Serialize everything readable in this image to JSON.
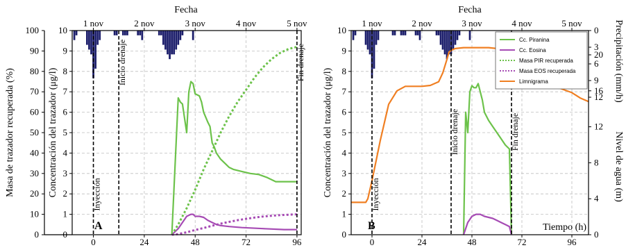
{
  "chart_data": [
    {
      "panel": "A",
      "type": "line",
      "top_axis_title": "Fecha",
      "top_ticks": [
        "1 nov",
        "2 nov",
        "3 nov",
        "4 nov",
        "5 nov"
      ],
      "top_tick_hours": [
        0,
        24,
        48,
        72,
        96
      ],
      "xlabel": "",
      "xlim": [
        -10,
        98
      ],
      "x_ticks": [
        0,
        24,
        48,
        72,
        96
      ],
      "y_left": {
        "label": "Masa de trazador recuperada (%)",
        "lim": [
          0,
          100
        ],
        "ticks": [
          0,
          10,
          20,
          30,
          40,
          50,
          60,
          70,
          80,
          90,
          100
        ]
      },
      "y_right": {
        "label": "Concentración del trazador (μg/l)",
        "lim": [
          0,
          10
        ],
        "ticks": [
          0,
          1,
          2,
          3,
          4,
          5,
          6,
          7,
          8,
          9,
          10
        ]
      },
      "grid": true,
      "annotations": [
        {
          "text": "Inyección",
          "x": 0
        },
        {
          "text": "Inicio drenaje",
          "x": 12
        },
        {
          "text": "Fin drenaje",
          "x": 96
        }
      ],
      "precip_bars": {
        "x": [
          -9,
          -8,
          -3,
          -2,
          -1,
          0,
          1,
          2,
          3,
          10,
          11,
          14,
          15,
          16,
          21,
          22,
          23,
          31,
          32,
          33,
          34,
          35,
          36,
          37,
          38,
          39,
          40,
          41,
          42,
          47
        ],
        "depth_mm_h": [
          2,
          1,
          3,
          4,
          5,
          10,
          8,
          3,
          2,
          1,
          1,
          1,
          1,
          1,
          1,
          1,
          2,
          1,
          1,
          3,
          4,
          5,
          6,
          5,
          5,
          4,
          3,
          2,
          1,
          2
        ]
      },
      "series": [
        {
          "name": "Cc. Piranina",
          "color": "#6cc24a",
          "style": "solid",
          "axis": "conc",
          "x": [
            37,
            40,
            41,
            42,
            44,
            45,
            46,
            47,
            48,
            50,
            51,
            52,
            54,
            55,
            56,
            57,
            58,
            60,
            62,
            64,
            66,
            70,
            74,
            78,
            82,
            86,
            90,
            96
          ],
          "y": [
            0,
            6.7,
            6.5,
            6.4,
            5.0,
            7.0,
            7.5,
            7.4,
            6.9,
            6.8,
            6.5,
            6.0,
            5.5,
            5.3,
            4.5,
            4.3,
            4.0,
            3.7,
            3.5,
            3.3,
            3.2,
            3.1,
            3.0,
            2.95,
            2.8,
            2.6,
            2.6,
            2.6
          ]
        },
        {
          "name": "Cc. Eosina",
          "color": "#a64bb4",
          "style": "solid",
          "axis": "conc",
          "x": [
            37,
            40,
            42,
            44,
            46,
            47,
            48,
            50,
            52,
            54,
            56,
            58,
            60,
            64,
            70,
            80,
            90,
            96
          ],
          "y": [
            0,
            0.3,
            0.6,
            0.9,
            1.0,
            1.0,
            0.9,
            0.9,
            0.85,
            0.7,
            0.6,
            0.5,
            0.45,
            0.4,
            0.35,
            0.3,
            0.25,
            0.25
          ]
        },
        {
          "name": "Masa PIR recuperada",
          "color": "#6cc24a",
          "style": "dotted",
          "axis": "pct",
          "x": [
            37,
            40,
            44,
            48,
            52,
            56,
            60,
            64,
            68,
            72,
            76,
            80,
            84,
            88,
            92,
            96
          ],
          "y": [
            0,
            5,
            13,
            22,
            32,
            41,
            50,
            58,
            65,
            71,
            77,
            82,
            86,
            89,
            91,
            92
          ]
        },
        {
          "name": "Masa EOS recuperada",
          "color": "#a64bb4",
          "style": "dotted",
          "axis": "pct",
          "x": [
            37,
            40,
            44,
            48,
            52,
            56,
            60,
            64,
            68,
            72,
            76,
            80,
            84,
            88,
            92,
            96
          ],
          "y": [
            0,
            0.3,
            1.2,
            2.3,
            3.3,
            4.4,
            5.4,
            6.3,
            7.1,
            7.8,
            8.4,
            8.9,
            9.3,
            9.6,
            9.8,
            10
          ]
        }
      ]
    },
    {
      "panel": "B",
      "type": "line",
      "top_axis_title": "Fecha",
      "top_ticks": [
        "1 nov",
        "2 nov",
        "3 nov",
        "4 nov",
        "5 nov"
      ],
      "top_tick_hours": [
        0,
        24,
        48,
        72,
        96
      ],
      "xlabel": "Tiempo (h)",
      "xlim": [
        -10,
        104
      ],
      "x_ticks": [
        0,
        24,
        48,
        72,
        96
      ],
      "y_left": {
        "label": "Concentración del trazador (μg/l)",
        "lim": [
          0,
          10
        ],
        "ticks": [
          0,
          1,
          2,
          3,
          4,
          5,
          6,
          7,
          8,
          9,
          10
        ]
      },
      "y_right_water": {
        "label": "Nivel de agua (m)",
        "lim": [
          0,
          22.7
        ],
        "ticks": [
          0,
          4,
          8,
          12,
          16,
          20
        ]
      },
      "y_right_precip": {
        "label": "Precipitación (mm/h)",
        "lim": [
          0,
          12
        ],
        "ticks": [
          0,
          3,
          6,
          9,
          12
        ]
      },
      "grid": true,
      "annotations": [
        {
          "text": "Inyección",
          "x": 0
        },
        {
          "text": "Inicio drenaje",
          "x": 38
        },
        {
          "text": "Fin drenaje",
          "x": 67
        }
      ],
      "legend": {
        "placement": "top-right",
        "entries": [
          "Cc. Piranina",
          "Cc. Eosina",
          "Masa PIR recuperada",
          "Masa EOS recuperada",
          "Limnigrama"
        ]
      },
      "precip_bars": {
        "x": [
          -9,
          -8,
          -3,
          -2,
          -1,
          0,
          1,
          2,
          3,
          10,
          11,
          14,
          15,
          16,
          21,
          22,
          23,
          31,
          32,
          33,
          34,
          35,
          36,
          37,
          38,
          39,
          40,
          41,
          42,
          47
        ],
        "depth_mm_h": [
          2,
          1,
          3,
          4,
          5,
          10,
          8,
          3,
          2,
          1,
          1,
          1,
          1,
          1,
          1,
          1,
          2,
          1,
          1,
          3,
          4,
          5,
          6,
          5,
          5,
          4,
          3,
          2,
          1,
          2
        ]
      },
      "series": [
        {
          "name": "Cc. Piranina",
          "color": "#6cc24a",
          "style": "solid",
          "axis": "conc",
          "x": [
            44,
            45,
            46,
            47,
            48,
            49,
            50,
            51,
            52,
            53,
            54,
            55,
            56,
            58,
            60,
            62,
            64,
            65,
            66,
            67
          ],
          "y": [
            0,
            6.0,
            5.0,
            7.0,
            7.3,
            7.2,
            7.2,
            7.4,
            7.0,
            6.6,
            6.0,
            5.8,
            5.6,
            5.3,
            5.0,
            4.7,
            4.4,
            4.3,
            4.2,
            0
          ]
        },
        {
          "name": "Cc. Eosina",
          "color": "#a64bb4",
          "style": "solid",
          "axis": "conc",
          "x": [
            44,
            46,
            48,
            50,
            52,
            54,
            56,
            58,
            60,
            62,
            64,
            66,
            67
          ],
          "y": [
            0,
            0.6,
            0.9,
            1.0,
            1.0,
            0.9,
            0.85,
            0.8,
            0.7,
            0.6,
            0.5,
            0.4,
            0
          ]
        },
        {
          "name": "Limnigrama",
          "color": "#f07f22",
          "style": "solid",
          "axis": "water",
          "x": [
            -10,
            -3,
            -2,
            0,
            4,
            8,
            12,
            16,
            20,
            24,
            28,
            32,
            34,
            36,
            37,
            38,
            40,
            44,
            48,
            52,
            56,
            60,
            64,
            66,
            68,
            72,
            78,
            84,
            90,
            96,
            100,
            104
          ],
          "y": [
            3.6,
            3.6,
            4.0,
            6.0,
            10.5,
            14.5,
            16.0,
            16.5,
            16.5,
            16.5,
            16.6,
            17.0,
            18.0,
            19.5,
            20.3,
            20.5,
            20.7,
            20.8,
            20.8,
            20.8,
            20.8,
            20.7,
            20.6,
            20.5,
            20.0,
            19.2,
            18.0,
            17.0,
            16.3,
            15.8,
            15.2,
            14.8
          ]
        }
      ]
    }
  ]
}
